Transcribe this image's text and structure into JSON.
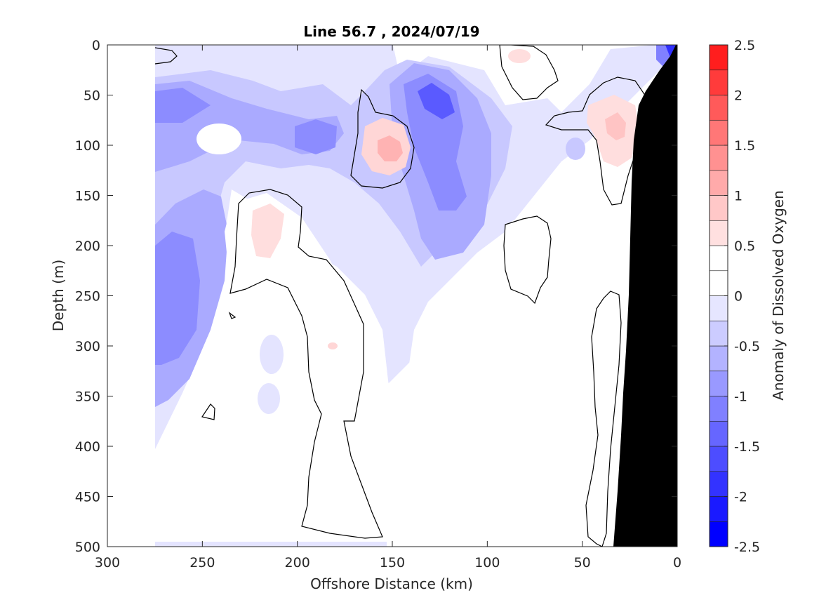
{
  "chart_data": {
    "type": "heatmap",
    "title": "Line 56.7 , 2024/07/19",
    "xlabel": "Offshore Distance (km)",
    "ylabel": "Depth (m)",
    "xlim": [
      300,
      0
    ],
    "ylim": [
      500,
      0
    ],
    "x_reversed": true,
    "y_reversed": true,
    "xticks": [
      300,
      250,
      200,
      150,
      100,
      50,
      0
    ],
    "yticks": [
      0,
      50,
      100,
      150,
      200,
      250,
      300,
      350,
      400,
      450,
      500
    ],
    "colorbar": {
      "label": "Anomaly of Dissolved Oxygen",
      "range": [
        -2.5,
        2.5
      ],
      "ticks": [
        2.5,
        2,
        1.5,
        1,
        0.5,
        0,
        -0.5,
        -1,
        -1.5,
        -2,
        -2.5
      ],
      "tick_labels": [
        "2.5",
        "2",
        "1.5",
        "1",
        "0.5",
        "0",
        "-0.5",
        "-1",
        "-1.5",
        "-2",
        "-2.5"
      ],
      "levels": [
        -2.5,
        -2.25,
        -2.0,
        -1.75,
        -1.5,
        -1.25,
        -1.0,
        -0.75,
        -0.5,
        -0.25,
        0,
        0.25,
        0.5,
        0.75,
        1.0,
        1.25,
        1.5,
        1.75,
        2.0,
        2.25,
        2.5
      ],
      "colors": [
        "#0000ff",
        "#1a1aff",
        "#3333ff",
        "#4d4dff",
        "#6666ff",
        "#8080ff",
        "#9999ff",
        "#b3b3ff",
        "#ccccff",
        "#e6e6ff",
        "#ffffff",
        "#ffffff",
        "#ffe0e0",
        "#ffc8c8",
        "#ffaaaa",
        "#ff9191",
        "#ff7777",
        "#ff5a5a",
        "#ff3b3b",
        "#ff1e1e"
      ]
    },
    "data_region": {
      "x_min": 0,
      "x_max": 275
    },
    "features": [
      {
        "name": "Offshore low, upper ocean",
        "x": [
          245,
          275
        ],
        "y": [
          40,
          110
        ],
        "value": -1.1
      },
      {
        "name": "Low near 185 km",
        "x": [
          175,
          200
        ],
        "y": [
          80,
          110
        ],
        "value": -1.2
      },
      {
        "name": "Deep low near 265 km",
        "x": [
          255,
          275
        ],
        "y": [
          180,
          320
        ],
        "value": -1.3
      },
      {
        "name": "Low core near 125 km",
        "x": [
          110,
          145
        ],
        "y": [
          40,
          90
        ],
        "value": -1.8
      },
      {
        "name": "Low tongue near 120 km",
        "x": [
          105,
          140
        ],
        "y": [
          110,
          200
        ],
        "value": -1.3
      },
      {
        "name": "Broad low",
        "x": [
          60,
          250
        ],
        "y": [
          0,
          350
        ],
        "value": -0.6
      },
      {
        "name": "Coastal surface low",
        "x": [
          0,
          15
        ],
        "y": [
          0,
          25
        ],
        "value": -2.0
      },
      {
        "name": "High near 155 km",
        "x": [
          145,
          165
        ],
        "y": [
          80,
          130
        ],
        "value": 0.8
      },
      {
        "name": "High near 215 km",
        "x": [
          205,
          225
        ],
        "y": [
          160,
          210
        ],
        "value": 0.5
      },
      {
        "name": "High near 30 km",
        "x": [
          20,
          40
        ],
        "y": [
          55,
          115
        ],
        "value": 0.7
      },
      {
        "name": "High near 85 km surface",
        "x": [
          78,
          92
        ],
        "y": [
          5,
          20
        ],
        "value": 0.4
      }
    ],
    "bathymetry": [
      [
        33,
        500
      ],
      [
        35,
        400
      ],
      [
        38,
        300
      ],
      [
        40,
        250
      ],
      [
        42,
        200
      ],
      [
        45,
        180
      ],
      [
        50,
        160
      ],
      [
        0,
        30
      ]
    ]
  }
}
